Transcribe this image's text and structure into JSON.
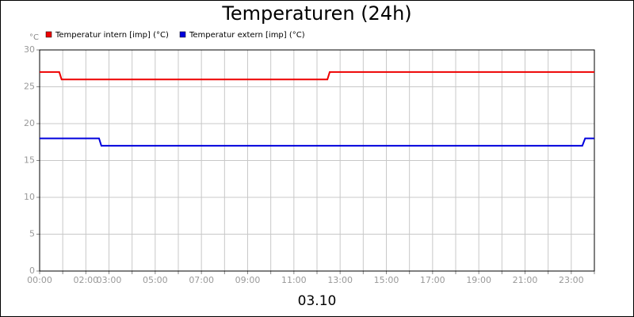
{
  "chart_data": {
    "type": "line",
    "title": "Temperaturen (24h)",
    "y_unit": "°C",
    "date": "03.10",
    "xlim": [
      0,
      24
    ],
    "xticks": [
      {
        "value": 0,
        "label": "00:00"
      },
      {
        "value": 1,
        "label": null
      },
      {
        "value": 2,
        "label": "02:00"
      },
      {
        "value": 3,
        "label": "03:00"
      },
      {
        "value": 4,
        "label": null
      },
      {
        "value": 5,
        "label": "05:00"
      },
      {
        "value": 6,
        "label": null
      },
      {
        "value": 7,
        "label": "07:00"
      },
      {
        "value": 8,
        "label": null
      },
      {
        "value": 9,
        "label": "09:00"
      },
      {
        "value": 10,
        "label": null
      },
      {
        "value": 11,
        "label": "11:00"
      },
      {
        "value": 12,
        "label": null
      },
      {
        "value": 13,
        "label": "13:00"
      },
      {
        "value": 14,
        "label": null
      },
      {
        "value": 15,
        "label": "15:00"
      },
      {
        "value": 16,
        "label": null
      },
      {
        "value": 17,
        "label": "17:00"
      },
      {
        "value": 18,
        "label": null
      },
      {
        "value": 19,
        "label": "19:00"
      },
      {
        "value": 20,
        "label": null
      },
      {
        "value": 21,
        "label": "21:00"
      },
      {
        "value": 22,
        "label": null
      },
      {
        "value": 23,
        "label": "23:00"
      },
      {
        "value": 24,
        "label": null
      }
    ],
    "ylim": [
      0,
      30
    ],
    "yticks": [
      0,
      5,
      10,
      15,
      20,
      25,
      30
    ],
    "grid": true,
    "series": [
      {
        "name": "Temperatur intern [imp] (°C)",
        "color": "#ee0000",
        "x": [
          0,
          0.85,
          0.95,
          12.45,
          12.55,
          24
        ],
        "values": [
          27,
          27,
          26,
          26,
          27,
          27
        ]
      },
      {
        "name": "Temperatur extern [imp] (°C)",
        "color": "#0000dd",
        "x": [
          0,
          2.57,
          2.67,
          23.48,
          23.6,
          24
        ],
        "values": [
          18,
          18,
          17,
          17,
          18,
          18
        ]
      }
    ]
  }
}
